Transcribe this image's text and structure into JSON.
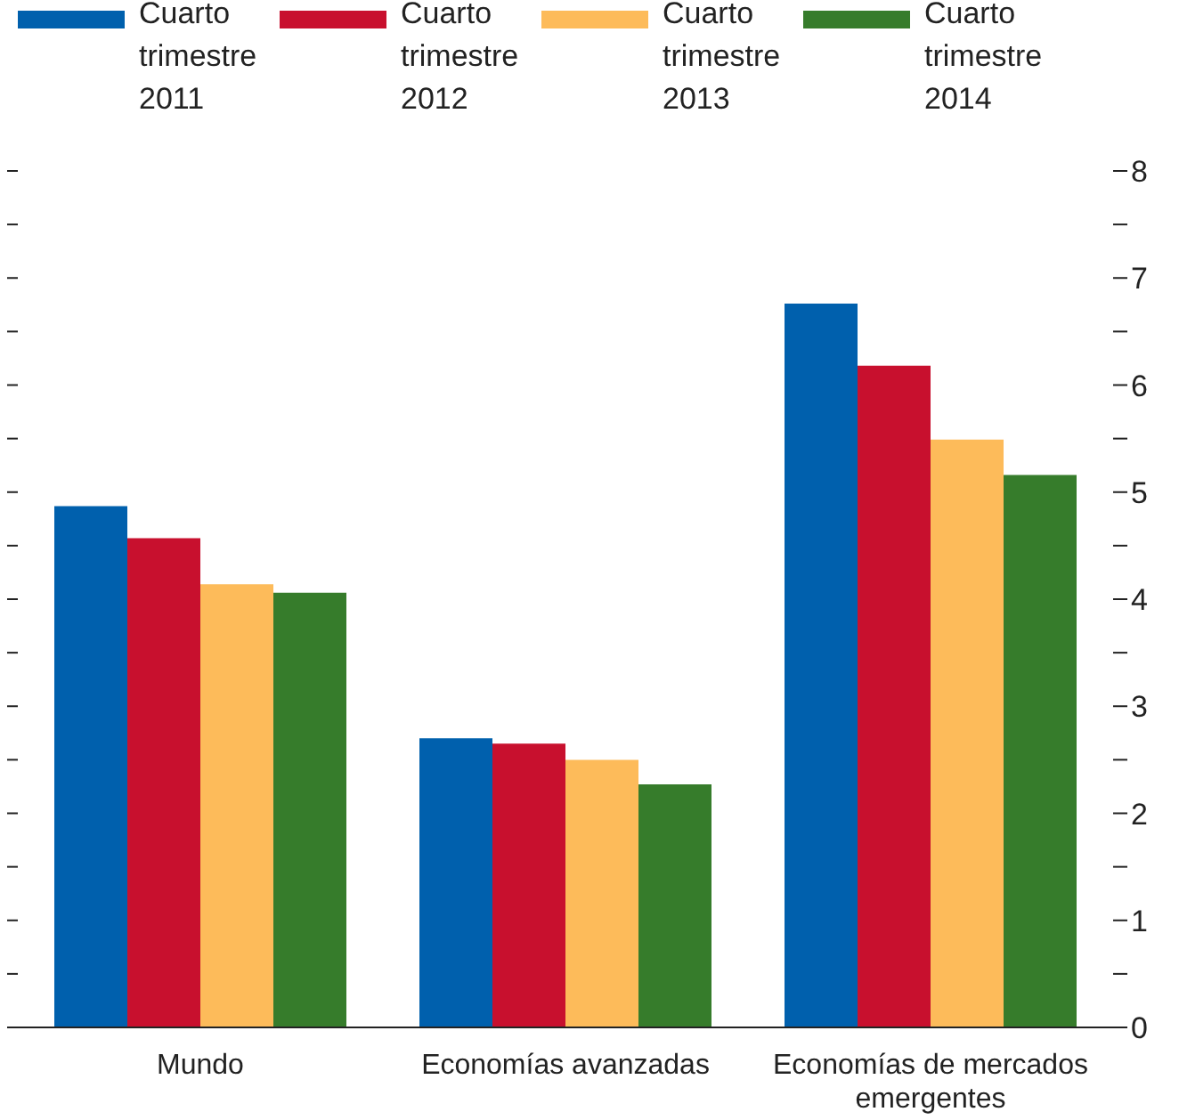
{
  "chart_data": {
    "type": "bar",
    "categories": [
      "Mundo",
      "Economías avanzadas",
      "Economías de mercados emergentes"
    ],
    "series": [
      {
        "name": "Cuarto trimestre 2011",
        "color": "#0060ad",
        "values": [
          4.87,
          2.7,
          6.76
        ]
      },
      {
        "name": "Cuarto trimestre 2012",
        "color": "#c8102e",
        "values": [
          4.57,
          2.65,
          6.18
        ]
      },
      {
        "name": "Cuarto trimestre 2013",
        "color": "#fdbb5a",
        "values": [
          4.14,
          2.5,
          5.49
        ]
      },
      {
        "name": "Cuarto trimestre 2014",
        "color": "#367c2b",
        "values": [
          4.06,
          2.27,
          5.16
        ]
      }
    ],
    "ylim": [
      0,
      8
    ],
    "yticks": [
      0,
      {
        "value": 0.5,
        "label": null
      },
      1,
      {
        "value": 1.5,
        "label": null
      },
      2,
      {
        "value": 2.5,
        "label": null
      },
      3,
      {
        "value": 3.5,
        "label": null
      },
      4,
      {
        "value": 4.5,
        "label": null
      },
      5,
      {
        "value": 5.5,
        "label": null
      },
      6,
      {
        "value": 6.5,
        "label": null
      },
      7,
      {
        "value": 7.5,
        "label": null
      },
      8
    ],
    "legend": "top"
  }
}
